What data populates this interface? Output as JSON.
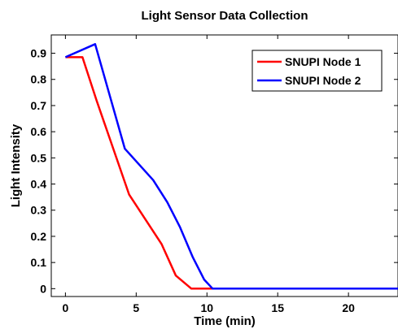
{
  "chart_data": {
    "type": "line",
    "title": "Light Sensor Data Collection",
    "xlabel": "Time (min)",
    "ylabel": "Light Intensity",
    "xlim": [
      -1,
      23.5
    ],
    "ylim": [
      -0.03,
      0.97
    ],
    "xticks": [
      0,
      5,
      10,
      15,
      20
    ],
    "yticks": [
      0,
      0.1,
      0.2,
      0.3,
      0.4,
      0.5,
      0.6,
      0.7,
      0.8,
      0.9
    ],
    "grid": false,
    "legend_position": "top-right",
    "series": [
      {
        "name": "SNUPI Node 1",
        "color": "#ff0000",
        "x": [
          0,
          1.2,
          2.2,
          4.5,
          6.8,
          7.8,
          8.9,
          9.5,
          23.5
        ],
        "y": [
          0.885,
          0.885,
          0.72,
          0.36,
          0.17,
          0.05,
          0.0,
          0.0,
          0.0
        ]
      },
      {
        "name": "SNUPI Node 2",
        "color": "#0000ff",
        "x": [
          0,
          2.1,
          4.2,
          6.2,
          7.2,
          8.1,
          9.0,
          9.8,
          10.4,
          23.5
        ],
        "y": [
          0.885,
          0.935,
          0.535,
          0.415,
          0.33,
          0.235,
          0.12,
          0.035,
          0.0,
          0.0
        ]
      }
    ]
  }
}
